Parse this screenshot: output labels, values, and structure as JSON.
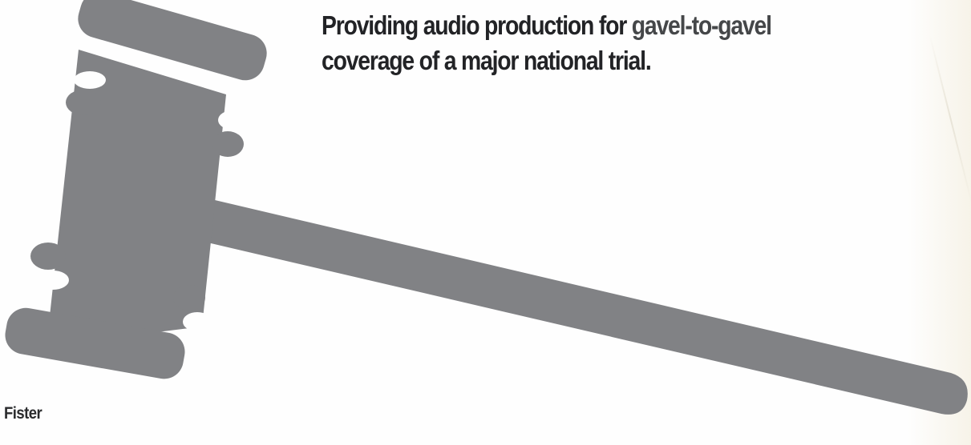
{
  "headline": {
    "line1_dark": "Providing audio production for ",
    "line1_light": "gavel-to-gavel",
    "line2": "coverage of a major national trial."
  },
  "footer": {
    "name": "Fister"
  },
  "illustration": {
    "icon": "gavel-icon",
    "color": "#818285"
  },
  "colors": {
    "background": "#fefefe",
    "text": "#222326"
  }
}
